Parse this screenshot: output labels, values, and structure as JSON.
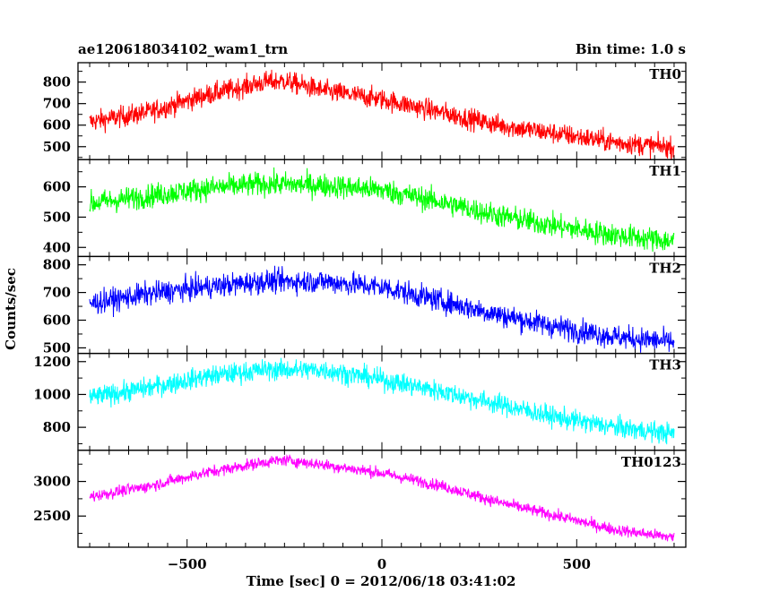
{
  "chart_data": {
    "type": "line",
    "title_left": "ae120618034102_wam1_trn",
    "title_right": "Bin time: 1.0 s",
    "xlabel": "Time [sec] 0 = 2012/06/18 03:41:02",
    "ylabel": "Counts/sec",
    "xlim": [
      -780,
      780
    ],
    "x_ticks": [
      -500,
      0,
      500
    ],
    "x_range": [
      -750,
      750
    ],
    "panels": [
      {
        "name": "TH0",
        "color": "#ff0000",
        "ylim": [
          440,
          890
        ],
        "y_ticks": [
          500,
          600,
          700,
          800
        ],
        "trend": [
          [
            -750,
            615
          ],
          [
            -600,
            660
          ],
          [
            -450,
            740
          ],
          [
            -300,
            800
          ],
          [
            -250,
            805
          ],
          [
            -150,
            760
          ],
          [
            0,
            720
          ],
          [
            150,
            660
          ],
          [
            300,
            600
          ],
          [
            450,
            560
          ],
          [
            600,
            520
          ],
          [
            750,
            495
          ]
        ],
        "noise": 35
      },
      {
        "name": "TH1",
        "color": "#00ff00",
        "ylim": [
          370,
          690
        ],
        "y_ticks": [
          400,
          500,
          600
        ],
        "trend": [
          [
            -750,
            545
          ],
          [
            -600,
            570
          ],
          [
            -450,
            595
          ],
          [
            -300,
            610
          ],
          [
            -150,
            605
          ],
          [
            0,
            590
          ],
          [
            150,
            550
          ],
          [
            300,
            505
          ],
          [
            450,
            470
          ],
          [
            600,
            440
          ],
          [
            750,
            420
          ]
        ],
        "noise": 28
      },
      {
        "name": "TH2",
        "color": "#0000ff",
        "ylim": [
          480,
          830
        ],
        "y_ticks": [
          500,
          600,
          700,
          800
        ],
        "trend": [
          [
            -750,
            660
          ],
          [
            -600,
            695
          ],
          [
            -450,
            720
          ],
          [
            -300,
            740
          ],
          [
            -150,
            740
          ],
          [
            0,
            720
          ],
          [
            150,
            670
          ],
          [
            300,
            620
          ],
          [
            450,
            575
          ],
          [
            600,
            540
          ],
          [
            750,
            520
          ]
        ],
        "noise": 30
      },
      {
        "name": "TH3",
        "color": "#00ffff",
        "ylim": [
          660,
          1250
        ],
        "y_ticks": [
          800,
          1000,
          1200
        ],
        "trend": [
          [
            -750,
            980
          ],
          [
            -600,
            1040
          ],
          [
            -450,
            1110
          ],
          [
            -300,
            1150
          ],
          [
            -150,
            1150
          ],
          [
            0,
            1090
          ],
          [
            150,
            1020
          ],
          [
            300,
            940
          ],
          [
            450,
            860
          ],
          [
            600,
            800
          ],
          [
            750,
            760
          ]
        ],
        "noise": 45
      },
      {
        "name": "TH0123",
        "color": "#ff00ff",
        "ylim": [
          2050,
          3450
        ],
        "y_ticks": [
          2500,
          3000
        ],
        "trend": [
          [
            -750,
            2780
          ],
          [
            -600,
            2930
          ],
          [
            -450,
            3130
          ],
          [
            -300,
            3280
          ],
          [
            -250,
            3310
          ],
          [
            -150,
            3240
          ],
          [
            0,
            3120
          ],
          [
            150,
            2940
          ],
          [
            300,
            2700
          ],
          [
            450,
            2500
          ],
          [
            600,
            2300
          ],
          [
            750,
            2190
          ]
        ],
        "noise": 60
      }
    ]
  }
}
